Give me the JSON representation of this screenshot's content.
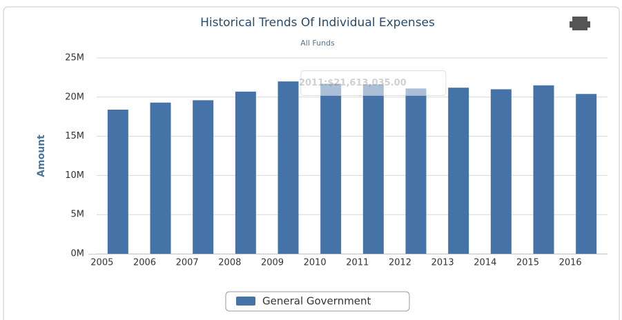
{
  "chart_data": {
    "type": "bar",
    "title": "Historical Trends Of Individual Expenses",
    "subtitle": "All Funds",
    "y_label": "Amount",
    "tooltip": "2011:$21,613,035.00",
    "categories": [
      "2005",
      "2006",
      "2007",
      "2008",
      "2009",
      "2010",
      "2011",
      "2012",
      "2013",
      "2014",
      "2015",
      "2016"
    ],
    "series": [
      {
        "name": "General Government",
        "color": "#4572a7",
        "values": [
          18400000,
          19300000,
          19600000,
          20700000,
          22000000,
          21700000,
          21613035,
          21100000,
          21200000,
          21000000,
          21500000,
          20400000
        ]
      }
    ],
    "ylim": [
      0,
      25000000
    ],
    "yticks": [
      {
        "value": 0,
        "label": "0M"
      },
      {
        "value": 5000000,
        "label": "5M"
      },
      {
        "value": 10000000,
        "label": "10M"
      },
      {
        "value": 15000000,
        "label": "15M"
      },
      {
        "value": 20000000,
        "label": "20M"
      },
      {
        "value": 25000000,
        "label": "25M"
      }
    ],
    "grid": true
  }
}
